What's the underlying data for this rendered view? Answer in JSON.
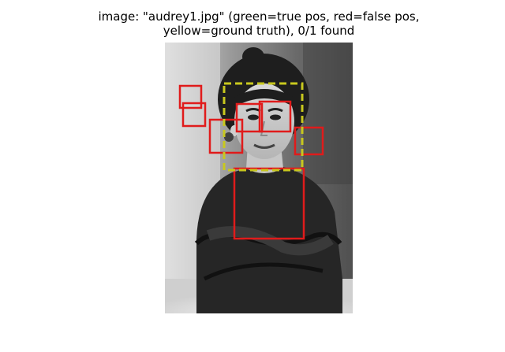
{
  "figure": {
    "title_line1": "image: \"audrey1.jpg\" (green=true pos, red=false pos,",
    "title_line2": "yellow=ground truth), 0/1 found"
  },
  "detections": {
    "false_positive_color": "#e01b1b",
    "ground_truth_color": "#c8c81e",
    "true_positive_color": "#1bb41b",
    "false_positive_count": 7,
    "ground_truth_count": 1,
    "found": 0
  },
  "photo": {
    "description_icon": "black-and-white-portrait-photo"
  }
}
